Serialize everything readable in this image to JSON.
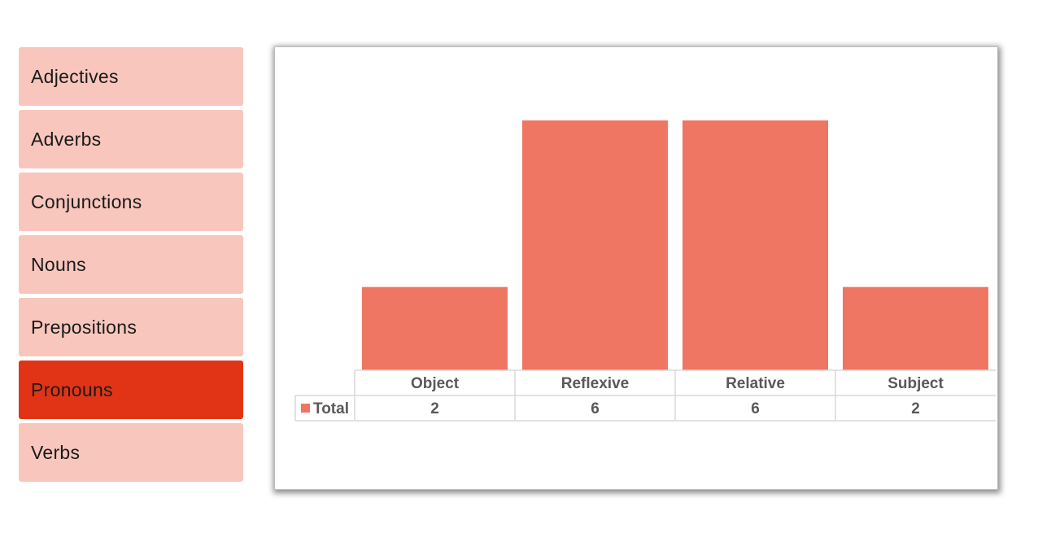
{
  "slicer": {
    "items": [
      {
        "label": "Adjectives",
        "selected": false
      },
      {
        "label": "Adverbs",
        "selected": false
      },
      {
        "label": "Conjunctions",
        "selected": false
      },
      {
        "label": "Nouns",
        "selected": false
      },
      {
        "label": "Prepositions",
        "selected": false
      },
      {
        "label": "Pronouns",
        "selected": true
      },
      {
        "label": "Verbs",
        "selected": false
      }
    ],
    "colors": {
      "item": "#f8c6bd",
      "selected": "#e13416"
    }
  },
  "chart_data": {
    "type": "bar",
    "categories": [
      "Object",
      "Reflexive",
      "Relative",
      "Subject"
    ],
    "series": [
      {
        "name": "Total",
        "values": [
          2,
          6,
          6,
          2
        ],
        "color": "#ef7662"
      }
    ],
    "ylim": [
      0,
      6
    ],
    "grid": false,
    "legend": "data-table",
    "data_table": true
  }
}
